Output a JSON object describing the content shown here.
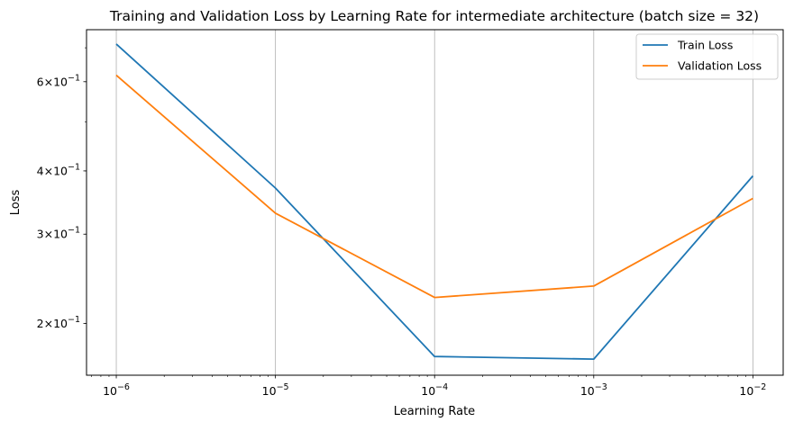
{
  "chart_data": {
    "type": "line",
    "title": "Training and Validation Loss by Learning Rate for intermediate architecture (batch size = 32)",
    "xlabel": "Learning Rate",
    "ylabel": "Loss",
    "x_scale": "log",
    "y_scale": "log",
    "x": [
      1e-06,
      1e-05,
      0.0001,
      0.001,
      0.01
    ],
    "xlim": [
      6.5e-07,
      0.0155
    ],
    "ylim": [
      0.158,
      0.76
    ],
    "x_ticks": [
      {
        "value": 1e-06,
        "base": "10",
        "exp": "−6"
      },
      {
        "value": 1e-05,
        "base": "10",
        "exp": "−5"
      },
      {
        "value": 0.0001,
        "base": "10",
        "exp": "−4"
      },
      {
        "value": 0.001,
        "base": "10",
        "exp": "−3"
      },
      {
        "value": 0.01,
        "base": "10",
        "exp": "−2"
      }
    ],
    "y_ticks": [
      {
        "value": 0.2,
        "mant": "2",
        "base": "×10",
        "exp": "−1"
      },
      {
        "value": 0.3,
        "mant": "3",
        "base": "×10",
        "exp": "−1"
      },
      {
        "value": 0.4,
        "mant": "4",
        "base": "×10",
        "exp": "−1"
      },
      {
        "value": 0.6,
        "mant": "6",
        "base": "×10",
        "exp": "−1"
      }
    ],
    "grid": "x-major",
    "legend_position": "top-right",
    "series": [
      {
        "name": "Train Loss",
        "color": "#1f77b4",
        "values": [
          0.712,
          0.37,
          0.172,
          0.17,
          0.391
        ]
      },
      {
        "name": "Validation Loss",
        "color": "#ff7f0e",
        "values": [
          0.618,
          0.33,
          0.225,
          0.237,
          0.353
        ]
      }
    ]
  }
}
